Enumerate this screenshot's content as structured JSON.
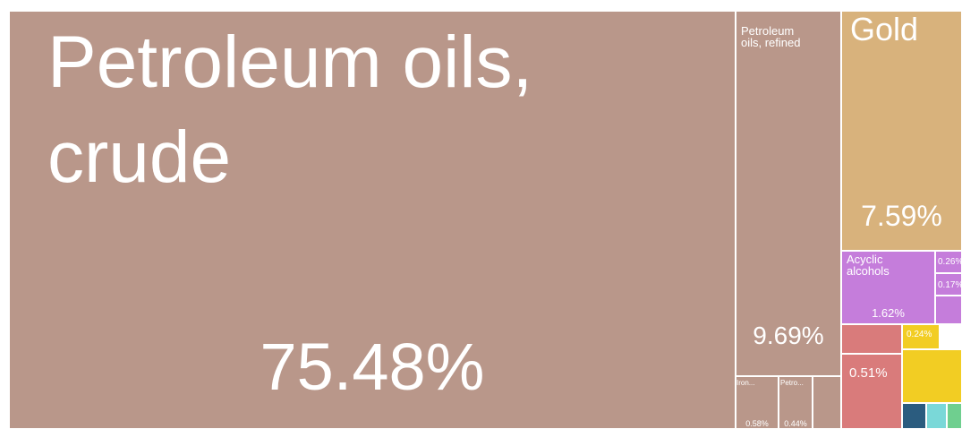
{
  "chart_data": {
    "type": "treemap",
    "categories": [
      "Petroleum oils, crude",
      "Petroleum oils, refined",
      "Gold",
      "Acyclic alcohols",
      "Iron...",
      "Petro...",
      null,
      null,
      null,
      null,
      null,
      null,
      null,
      null,
      null,
      null,
      null
    ],
    "values": [
      75.48,
      9.69,
      7.59,
      1.62,
      0.58,
      0.44,
      0.51,
      0.26,
      0.17,
      0.24,
      0.3,
      0.6,
      0.1,
      0.08,
      0.1,
      0.1,
      0.1
    ],
    "value_labels": [
      "75.48%",
      "9.69%",
      "7.59%",
      "1.62%",
      "0.58%",
      "0.44%",
      "0.51%",
      "0.26%",
      "0.17%",
      "0.24%",
      null,
      null,
      null,
      null,
      null,
      null,
      null
    ],
    "colors": [
      "#b9978a",
      "#b9978a",
      "#d8b27c",
      "#c57ddb",
      "#b9978a",
      "#b9978a",
      "#d97b7b",
      "#c57ddb",
      "#c57ddb",
      "#f2cd23",
      "#d97b7b",
      "#f2cd23",
      "#2b5c7f",
      "#7ad8d8",
      "#6fcf8f",
      "#b9978a",
      "#c57ddb"
    ]
  }
}
